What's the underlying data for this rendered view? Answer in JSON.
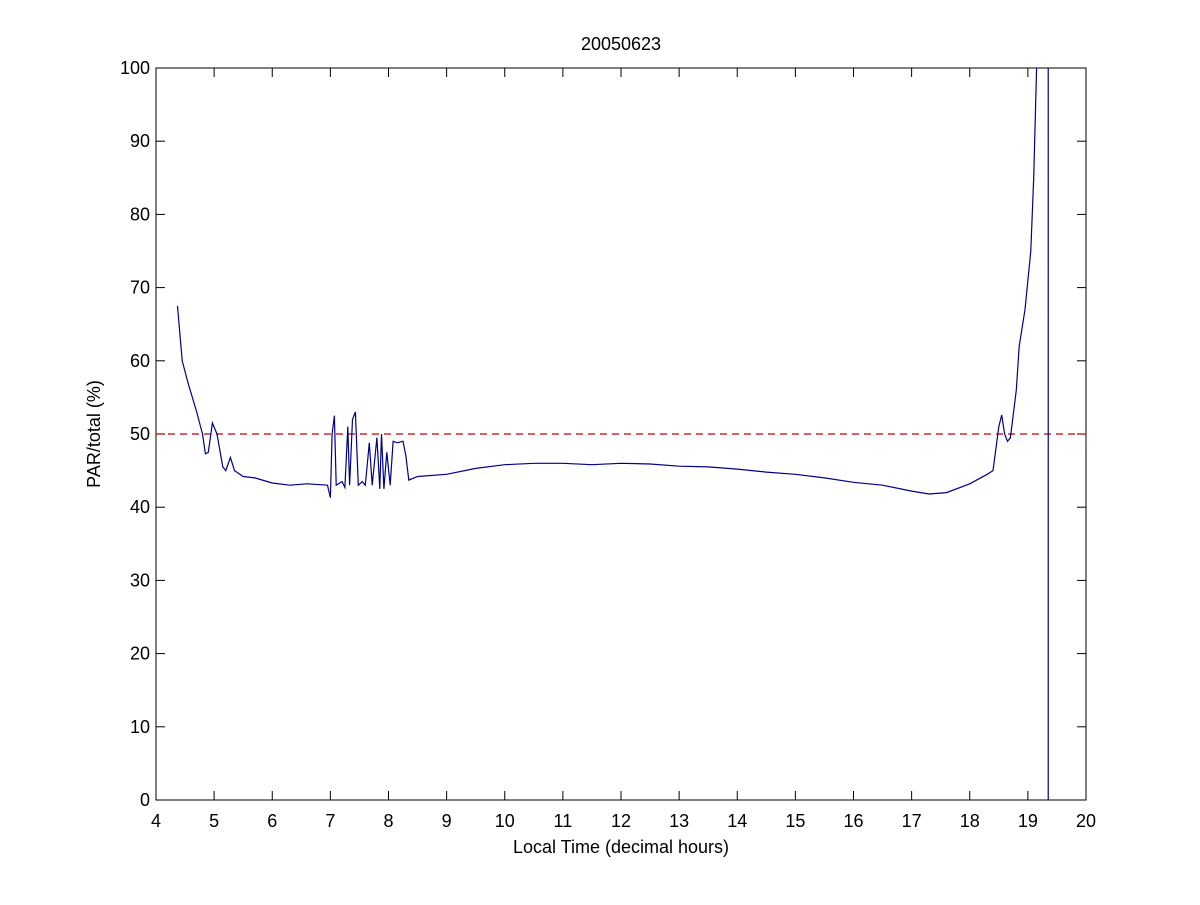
{
  "chart_data": {
    "type": "line",
    "title": "20050623",
    "x_label": "Local Time (decimal hours)",
    "y_label": "PAR/total (%)",
    "x": [
      4.37,
      4.45,
      4.55,
      4.7,
      4.8,
      4.85,
      4.9,
      4.97,
      5.05,
      5.15,
      5.2,
      5.28,
      5.35,
      5.5,
      5.7,
      6.0,
      6.3,
      6.6,
      6.95,
      7.0,
      7.03,
      7.07,
      7.1,
      7.2,
      7.25,
      7.3,
      7.33,
      7.38,
      7.43,
      7.48,
      7.55,
      7.6,
      7.67,
      7.72,
      7.8,
      7.85,
      7.88,
      7.92,
      7.97,
      8.03,
      8.08,
      8.15,
      8.25,
      8.3,
      8.35,
      8.5,
      9,
      9.5,
      10,
      10.5,
      11,
      11.5,
      12,
      12.5,
      13,
      13.5,
      14,
      14.5,
      15,
      15.5,
      16,
      16.5,
      17,
      17.3,
      17.6,
      18,
      18.3,
      18.4,
      18.5,
      18.55,
      18.6,
      18.65,
      18.7,
      18.8,
      18.85,
      18.95,
      19.05,
      19.1,
      19.15
    ],
    "values": [
      67.5,
      60,
      57,
      53,
      50,
      47.3,
      47.5,
      51.5,
      50,
      45.5,
      45,
      46.8,
      45,
      44.2,
      44,
      43.3,
      43,
      43.2,
      43,
      41.3,
      50,
      52.5,
      43,
      43.5,
      42.7,
      51,
      43,
      52,
      53,
      43,
      43.5,
      43,
      48.8,
      43,
      49.5,
      42.5,
      50,
      42.5,
      47.5,
      43,
      49,
      48.8,
      49,
      47,
      43.7,
      44.2,
      44.5,
      45.3,
      45.8,
      46,
      46,
      45.8,
      46,
      45.9,
      45.6,
      45.5,
      45.2,
      44.8,
      44.5,
      44,
      43.4,
      43,
      42.2,
      41.8,
      42,
      43.2,
      44.5,
      45,
      51,
      52.6,
      50,
      49,
      49.5,
      56,
      62,
      67,
      75,
      85,
      100
    ],
    "color": "#00008b",
    "vline": 19.35,
    "vline_color": "#00008b",
    "hline": 50,
    "hline_color": "#c00000",
    "hline_dashed": true,
    "xlim": [
      4,
      20
    ],
    "ylim": [
      0,
      100
    ],
    "xticks": [
      4,
      5,
      6,
      7,
      8,
      9,
      10,
      11,
      12,
      13,
      14,
      15,
      16,
      17,
      18,
      19,
      20
    ],
    "yticks": [
      0,
      10,
      20,
      30,
      40,
      50,
      60,
      70,
      80,
      90,
      100
    ]
  }
}
